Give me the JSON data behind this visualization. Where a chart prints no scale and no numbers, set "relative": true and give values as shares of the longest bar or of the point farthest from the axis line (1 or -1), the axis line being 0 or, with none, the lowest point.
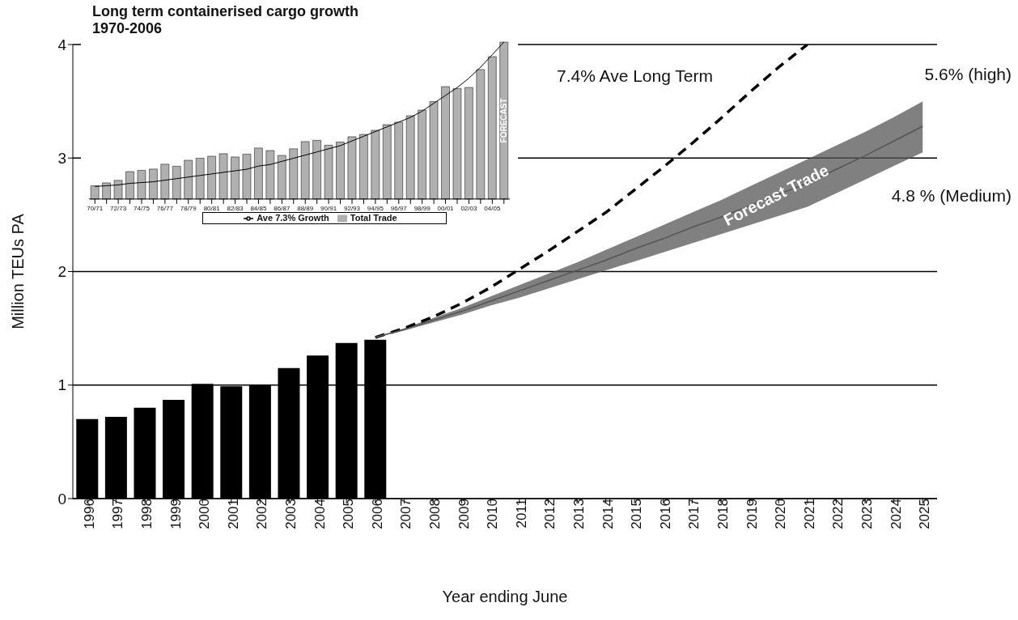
{
  "chart_data": [
    {
      "type": "bar",
      "xlabel": "Year ending June",
      "ylabel": "Million TEUs PA",
      "categories": [
        "1996",
        "1997",
        "1998",
        "1999",
        "2000",
        "2001",
        "2002",
        "2003",
        "2004",
        "2005",
        "2006",
        "2007",
        "2008",
        "2009",
        "2010",
        "2011",
        "2012",
        "2013",
        "2014",
        "2015",
        "2016",
        "2017",
        "2018",
        "2019",
        "2020",
        "2021",
        "2022",
        "2023",
        "2024",
        "2025"
      ],
      "series": [
        {
          "color": "#000000",
          "values": [
            0.7,
            0.72,
            0.8,
            0.87,
            1.01,
            0.99,
            1.0,
            1.15,
            1.26,
            1.37,
            1.4,
            null,
            null,
            null,
            null,
            null,
            null,
            null,
            null,
            null,
            null,
            null,
            null,
            null,
            null,
            null,
            null,
            null,
            null,
            null
          ]
        },
        {
          "type": "line",
          "name": "7.4% Ave Long Term",
          "color": "#000000",
          "line_style": "dashed",
          "values": [
            null,
            null,
            null,
            null,
            null,
            null,
            null,
            null,
            null,
            null,
            1.42,
            1.5,
            1.6,
            1.72,
            1.86,
            2.02,
            2.18,
            2.35,
            2.52,
            2.72,
            2.92,
            3.13,
            3.35,
            3.58,
            3.8,
            4.0,
            null,
            null,
            null,
            null
          ]
        },
        {
          "type": "line",
          "name": "Forecast Trade",
          "color": "#555555",
          "values": [
            null,
            null,
            null,
            null,
            null,
            null,
            null,
            null,
            null,
            null,
            1.42,
            1.49,
            1.57,
            1.65,
            1.74,
            1.83,
            1.92,
            2.01,
            2.1,
            2.2,
            2.29,
            2.39,
            2.48,
            2.58,
            2.68,
            2.78,
            2.9,
            3.02,
            3.15,
            3.28
          ],
          "lower": [
            null,
            null,
            null,
            null,
            null,
            null,
            null,
            null,
            null,
            null,
            1.42,
            1.48,
            1.55,
            1.62,
            1.7,
            1.77,
            1.85,
            1.93,
            2.01,
            2.09,
            2.17,
            2.25,
            2.33,
            2.41,
            2.49,
            2.57,
            2.69,
            2.81,
            2.93,
            3.05
          ],
          "upper": [
            null,
            null,
            null,
            null,
            null,
            null,
            null,
            null,
            null,
            null,
            1.42,
            1.5,
            1.59,
            1.68,
            1.78,
            1.88,
            1.98,
            2.08,
            2.19,
            2.3,
            2.41,
            2.52,
            2.63,
            2.75,
            2.87,
            2.99,
            3.11,
            3.23,
            3.36,
            3.5
          ]
        }
      ],
      "ylim": [
        0,
        4
      ],
      "yticks": [
        0,
        1,
        2,
        3,
        4
      ],
      "grid": "y",
      "marker": "none",
      "annotations": [
        "5.6% (high)",
        "4.8 % (Medium)"
      ]
    },
    {
      "type": "bar",
      "title": "Long term containerised cargo growth 1970-2006",
      "relative": true,
      "tick_labels": "x",
      "legend": "bottom",
      "categories": [
        "70/71",
        null,
        "72/73",
        null,
        "74/75",
        null,
        "76/77",
        null,
        "78/79",
        null,
        "80/81",
        null,
        "82/83",
        null,
        "84/85",
        null,
        "86/87",
        null,
        "88/89",
        null,
        "90/91",
        null,
        "92/93",
        null,
        "94/95",
        null,
        "96/97",
        null,
        "98/99",
        null,
        "00/01",
        null,
        "02/03",
        null,
        "04/05",
        null
      ],
      "series": [
        {
          "name": "Total Trade",
          "color": "#b0b0b0",
          "values": [
            0.085,
            0.103,
            0.119,
            0.175,
            0.183,
            0.191,
            0.222,
            0.209,
            0.247,
            0.26,
            0.273,
            0.289,
            0.268,
            0.286,
            0.325,
            0.309,
            0.278,
            0.32,
            0.366,
            0.374,
            0.343,
            0.363,
            0.397,
            0.412,
            0.438,
            0.474,
            0.49,
            0.531,
            0.567,
            0.621,
            0.716,
            0.704,
            0.711,
            0.825,
            0.907,
            1
          ]
        },
        {
          "type": "line",
          "name": "Ave 7.3% Growth",
          "color": "#000000",
          "values": [
            0.08,
            0.085,
            0.09,
            0.1,
            0.105,
            0.11,
            0.12,
            0.13,
            0.14,
            0.15,
            0.16,
            0.17,
            0.18,
            0.19,
            0.21,
            0.22,
            0.24,
            0.26,
            0.28,
            0.3,
            0.32,
            0.34,
            0.37,
            0.4,
            0.43,
            0.46,
            0.49,
            0.52,
            0.56,
            0.61,
            0.66,
            0.71,
            0.77,
            0.84,
            0.92,
            1
          ]
        }
      ],
      "marker": "none",
      "annotations": [
        "FORECAST"
      ]
    }
  ]
}
